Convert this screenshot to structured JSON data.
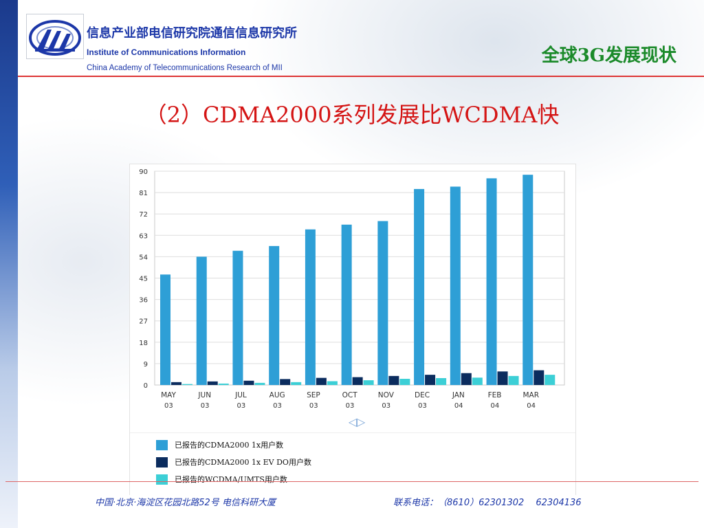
{
  "header": {
    "org_name_cn": "信息产业部电信研究院通信信息研究所",
    "org_name_en": "Institute of Communications Information",
    "org_subname_en": "China Academy of Telecommunications Research of MII",
    "section_title": "全球3G发展现状",
    "logo_icon": "institute-logo-icon"
  },
  "slide": {
    "title": "（2）CDMA2000系列发展比WCDMA快"
  },
  "footer": {
    "address": "中国·北京·海淀区花园北路52号 电信科研大厦",
    "phone": "联系电话：（8610）62301302　 62304136"
  },
  "colors": {
    "title_red": "#d41414",
    "org_blue": "#1c37a8",
    "section_green": "#1b8a2a",
    "series_cdma1x": "#2e9fd6",
    "series_evdo": "#0b2c5e",
    "series_wcdma": "#3ccfd6"
  },
  "chart_data": {
    "type": "bar",
    "title": "",
    "xlabel": "",
    "ylabel": "",
    "ylim": [
      0,
      90
    ],
    "yticks": [
      "0",
      "9",
      "18",
      "27",
      "36",
      "45",
      "54",
      "63",
      "72",
      "81",
      "90"
    ],
    "grid": true,
    "legend_position": "bottom",
    "nav_arrows": "◁▷",
    "categories": [
      {
        "month": "MAY",
        "year": "03"
      },
      {
        "month": "JUN",
        "year": "03"
      },
      {
        "month": "JUL",
        "year": "03"
      },
      {
        "month": "AUG",
        "year": "03"
      },
      {
        "month": "SEP",
        "year": "03"
      },
      {
        "month": "OCT",
        "year": "03"
      },
      {
        "month": "NOV",
        "year": "03"
      },
      {
        "month": "DEC",
        "year": "03"
      },
      {
        "month": "JAN",
        "year": "04"
      },
      {
        "month": "FEB",
        "year": "04"
      },
      {
        "month": "MAR",
        "year": "04"
      }
    ],
    "series": [
      {
        "name": "已报告的CDMA2000 1x用户数",
        "color": "#2e9fd6",
        "values": [
          46.5,
          54,
          56.5,
          58.5,
          65.5,
          67.5,
          69,
          82.5,
          83.5,
          87,
          88.5
        ]
      },
      {
        "name": "已报告的CDMA2000 1x EV DO用户数",
        "color": "#0b2c5e",
        "values": [
          1.2,
          1.5,
          1.8,
          2.5,
          3,
          3.3,
          3.8,
          4.3,
          5,
          5.7,
          6.2
        ]
      },
      {
        "name": "已报告的WCDMA/UMTS用户数",
        "color": "#3ccfd6",
        "values": [
          0.4,
          0.6,
          0.9,
          1.2,
          1.6,
          2,
          2.6,
          2.9,
          3.1,
          3.8,
          4.3
        ]
      }
    ]
  }
}
